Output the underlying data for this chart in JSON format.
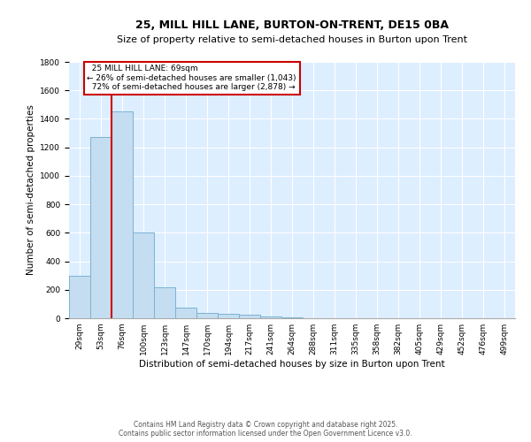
{
  "title": "25, MILL HILL LANE, BURTON-ON-TRENT, DE15 0BA",
  "subtitle": "Size of property relative to semi-detached houses in Burton upon Trent",
  "xlabel": "Distribution of semi-detached houses by size in Burton upon Trent",
  "ylabel": "Number of semi-detached properties",
  "footer_line1": "Contains HM Land Registry data © Crown copyright and database right 2025.",
  "footer_line2": "Contains public sector information licensed under the Open Government Licence v3.0.",
  "bins": [
    "29sqm",
    "53sqm",
    "76sqm",
    "100sqm",
    "123sqm",
    "147sqm",
    "170sqm",
    "194sqm",
    "217sqm",
    "241sqm",
    "264sqm",
    "288sqm",
    "311sqm",
    "335sqm",
    "358sqm",
    "382sqm",
    "405sqm",
    "429sqm",
    "452sqm",
    "476sqm",
    "499sqm"
  ],
  "values": [
    300,
    1270,
    1450,
    605,
    220,
    75,
    40,
    30,
    25,
    10,
    5,
    0,
    0,
    0,
    0,
    0,
    0,
    0,
    0,
    0,
    0
  ],
  "property_label": "25 MILL HILL LANE: 69sqm",
  "pct_smaller": 26,
  "count_smaller": 1043,
  "pct_larger": 72,
  "count_larger": 2878,
  "bar_color": "#c5ddf0",
  "bar_edge_color": "#7ab3d4",
  "vline_color": "#cc0000",
  "vline_x_index": 1.5,
  "annotation_box_edgecolor": "#cc0000",
  "background_color": "#ddeeff",
  "grid_color": "#ffffff",
  "ylim": [
    0,
    1800
  ],
  "yticks": [
    0,
    200,
    400,
    600,
    800,
    1000,
    1200,
    1400,
    1600,
    1800
  ],
  "title_fontsize": 9,
  "subtitle_fontsize": 8,
  "ylabel_fontsize": 7.5,
  "xlabel_fontsize": 7.5,
  "tick_fontsize": 6.5,
  "annotation_fontsize": 6.5,
  "footer_fontsize": 5.5
}
